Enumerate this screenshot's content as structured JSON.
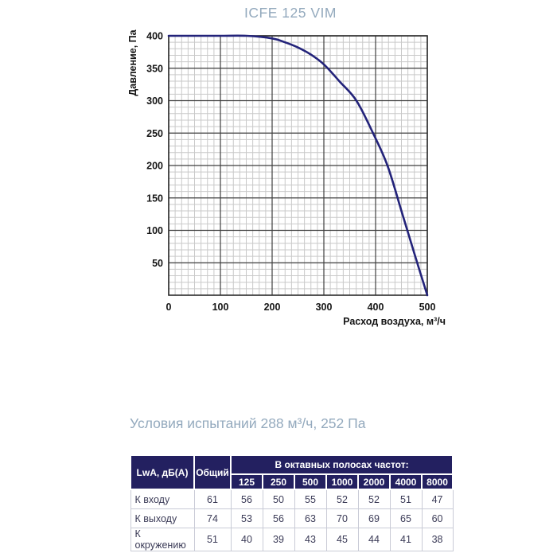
{
  "title": "ICFE 125 VIM",
  "conditions": {
    "text": "Условия испытаний 288 м³/ч, 252 Па"
  },
  "chart_data": {
    "type": "line",
    "title": "ICFE 125 VIM",
    "xlabel": "Расход воздуха, м³/ч",
    "ylabel": "Давление, Па",
    "xlim": [
      0,
      500
    ],
    "ylim": [
      0,
      400
    ],
    "x_ticks": [
      0,
      100,
      200,
      300,
      400,
      500
    ],
    "y_ticks": [
      50,
      100,
      150,
      200,
      250,
      300,
      350,
      400
    ],
    "x_minor_step": 12.5,
    "y_minor_step": 10,
    "grid": "on",
    "legend": "none",
    "series": [
      {
        "name": "fan-performance-curve",
        "points": [
          [
            0,
            400
          ],
          [
            50,
            400
          ],
          [
            100,
            400
          ],
          [
            150,
            400
          ],
          [
            200,
            396
          ],
          [
            225,
            390
          ],
          [
            250,
            382
          ],
          [
            275,
            371
          ],
          [
            300,
            356
          ],
          [
            330,
            330
          ],
          [
            363,
            300
          ],
          [
            395,
            250
          ],
          [
            423,
            200
          ],
          [
            450,
            130
          ],
          [
            475,
            64
          ],
          [
            500,
            0
          ]
        ]
      }
    ]
  },
  "table": {
    "col1_header": "LwA, дБ(A)",
    "col2_header": "Общий",
    "group_header": "В октавных полосах частот:",
    "freq_headers": [
      "125",
      "250",
      "500",
      "1000",
      "2000",
      "4000",
      "8000"
    ],
    "rows": [
      {
        "label": "К входу",
        "total": "61",
        "values": [
          "56",
          "50",
          "55",
          "52",
          "52",
          "51",
          "47"
        ]
      },
      {
        "label": "К выходу",
        "total": "74",
        "values": [
          "53",
          "56",
          "63",
          "70",
          "69",
          "65",
          "60"
        ]
      },
      {
        "label": "К окружению",
        "total": "51",
        "values": [
          "40",
          "39",
          "43",
          "45",
          "44",
          "41",
          "38"
        ]
      }
    ]
  },
  "colors": {
    "title_text": "#93a9bd",
    "curve": "#23237a",
    "grid_minor": "#c9c9c9",
    "grid_major": "#3f3f3f",
    "plot_border": "#2b2b2b",
    "table_header_bg": "#232060",
    "table_text": "#3b3b57"
  }
}
